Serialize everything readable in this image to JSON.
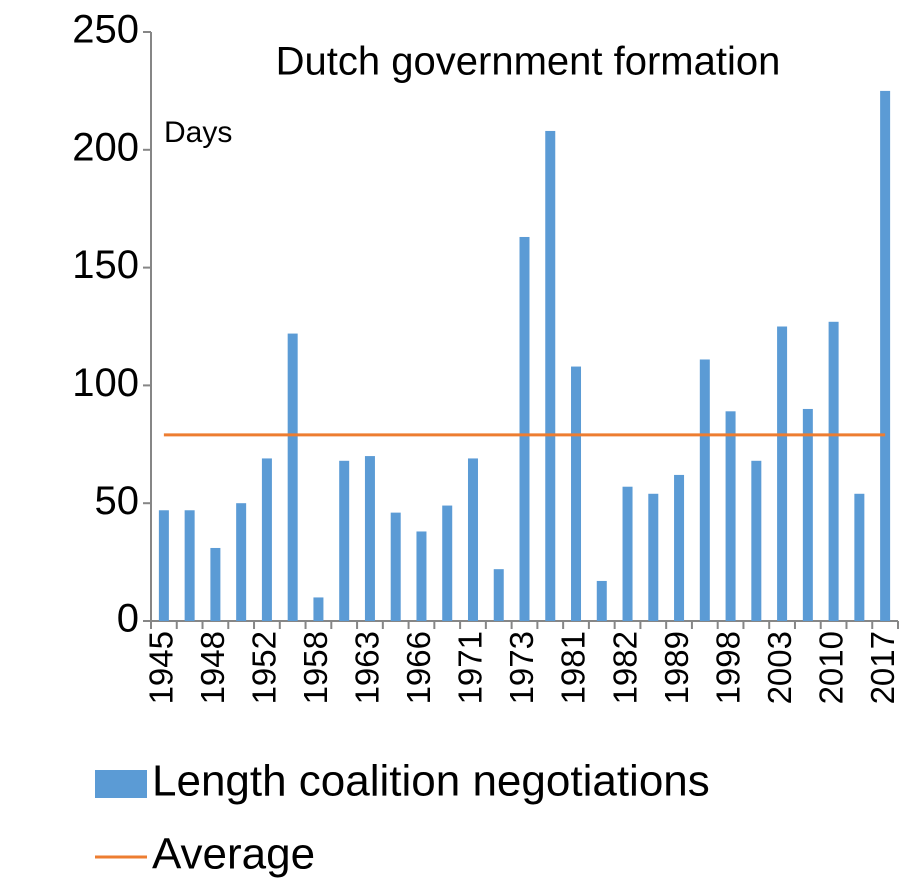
{
  "chart_data": {
    "type": "bar",
    "title": "Dutch government formation",
    "annotation": "Days",
    "categories": [
      "1945",
      null,
      "1948",
      null,
      "1952",
      null,
      "1958",
      null,
      "1963",
      null,
      "1966",
      null,
      "1971",
      null,
      "1973",
      null,
      "1981",
      null,
      "1982",
      null,
      "1989",
      null,
      "1998",
      null,
      "2003",
      null,
      "2010",
      null,
      "2017"
    ],
    "series": [
      {
        "name": "Length coalition negotiations",
        "type": "bar",
        "color": "#5b9bd5",
        "values": [
          47,
          47,
          31,
          50,
          69,
          122,
          10,
          68,
          70,
          46,
          38,
          49,
          69,
          22,
          163,
          208,
          108,
          17,
          57,
          54,
          62,
          111,
          89,
          68,
          125,
          90,
          127,
          54,
          225
        ]
      },
      {
        "name": "Average",
        "type": "line",
        "color": "#ed7d31",
        "values": [
          79,
          79,
          79,
          79,
          79,
          79,
          79,
          79,
          79,
          79,
          79,
          79,
          79,
          79,
          79,
          79,
          79,
          79,
          79,
          79,
          79,
          79,
          79,
          79,
          79,
          79,
          79,
          79,
          79
        ]
      }
    ],
    "ylim": [
      0,
      250
    ],
    "yticks": [
      0,
      50,
      100,
      150,
      200,
      250
    ],
    "grid": false,
    "legend": "bottom"
  }
}
